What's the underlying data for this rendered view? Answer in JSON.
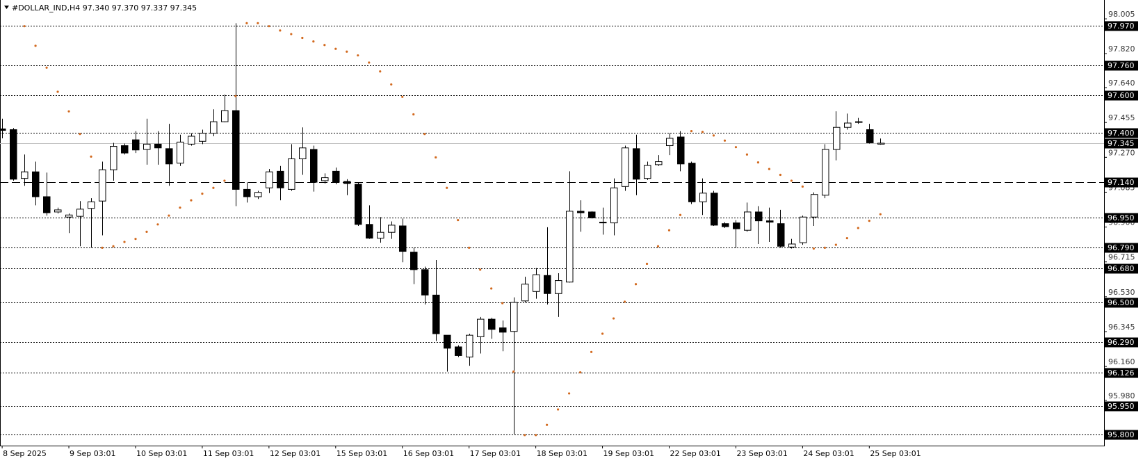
{
  "chart_data": {
    "type": "candlestick",
    "title": "#DOLLAR_IND,H4  97.340 97.370 97.337 97.345",
    "categories": [
      "8 Sep 2025",
      null,
      null,
      null,
      null,
      null,
      "9 Sep 03:01",
      null,
      null,
      null,
      null,
      null,
      "10 Sep 03:01",
      null,
      null,
      null,
      null,
      null,
      "11 Sep 03:01",
      null,
      null,
      null,
      null,
      null,
      "12 Sep 03:01",
      null,
      null,
      null,
      null,
      null,
      "15 Sep 03:01",
      null,
      null,
      null,
      null,
      null,
      "16 Sep 03:01",
      null,
      null,
      null,
      null,
      null,
      "17 Sep 03:01",
      null,
      null,
      null,
      null,
      null,
      "18 Sep 03:01",
      null,
      null,
      null,
      null,
      null,
      "19 Sep 03:01",
      null,
      null,
      null,
      null,
      null,
      "22 Sep 03:01",
      null,
      null,
      null,
      null,
      null,
      "23 Sep 03:01",
      null,
      null,
      null,
      null,
      null,
      "24 Sep 03:01",
      null,
      null,
      null,
      null,
      null,
      "25 Sep 03:01",
      null
    ],
    "open": [
      97.421,
      97.417,
      97.158,
      97.193,
      97.061,
      96.98,
      96.953,
      96.957,
      96.999,
      97.038,
      97.204,
      97.332,
      97.363,
      97.312,
      97.34,
      97.316,
      97.239,
      97.34,
      97.355,
      97.398,
      97.459,
      97.518,
      97.1,
      97.061,
      97.108,
      97.196,
      97.1,
      97.262,
      97.312,
      97.146,
      97.196,
      97.142,
      97.127,
      96.914,
      96.841,
      96.872,
      96.906,
      96.767,
      96.674,
      96.539,
      96.326,
      96.264,
      96.21,
      96.318,
      96.411,
      96.365,
      96.346,
      96.508,
      96.558,
      96.643,
      96.547,
      96.608,
      96.984,
      96.98,
      96.926,
      96.922,
      97.115,
      97.316,
      97.158,
      97.231,
      97.332,
      97.378,
      97.239,
      97.034,
      97.08,
      96.918,
      96.922,
      96.883,
      96.98,
      96.933,
      96.918,
      96.794,
      96.817,
      96.953,
      97.069,
      97.312,
      97.429,
      97.459,
      97.417,
      97.34
    ],
    "high": [
      97.475,
      97.425,
      97.285,
      97.247,
      97.189,
      97.003,
      96.972,
      97.038,
      97.053,
      97.247,
      97.347,
      97.343,
      97.409,
      97.475,
      97.409,
      97.448,
      97.39,
      97.398,
      97.417,
      97.525,
      97.603,
      97.982,
      97.138,
      97.092,
      97.208,
      97.224,
      97.34,
      97.429,
      97.332,
      97.185,
      97.216,
      97.154,
      97.138,
      97.015,
      96.953,
      96.93,
      96.945,
      96.79,
      96.69,
      96.725,
      96.326,
      96.272,
      96.334,
      96.423,
      96.419,
      96.404,
      96.527,
      96.636,
      96.682,
      96.899,
      96.655,
      97.196,
      97.042,
      96.984,
      97.003,
      97.158,
      97.332,
      97.39,
      97.247,
      97.282,
      97.398,
      97.409,
      97.247,
      97.158,
      97.092,
      96.926,
      96.937,
      97.03,
      97.011,
      97.003,
      96.991,
      96.837,
      96.961,
      97.084,
      97.34,
      97.514,
      97.502,
      97.479,
      97.448,
      97.37
    ],
    "low": [
      97.371,
      97.146,
      97.119,
      97.015,
      96.961,
      96.972,
      96.868,
      96.798,
      96.79,
      96.856,
      97.146,
      97.285,
      97.293,
      97.231,
      97.231,
      97.119,
      97.224,
      97.332,
      97.34,
      97.382,
      97.456,
      97.011,
      97.03,
      97.049,
      97.08,
      97.042,
      97.092,
      97.177,
      97.088,
      97.131,
      97.127,
      97.069,
      96.906,
      96.837,
      96.817,
      96.837,
      96.713,
      96.597,
      96.489,
      96.295,
      96.133,
      96.21,
      96.164,
      96.229,
      96.307,
      96.241,
      95.8,
      96.5,
      96.52,
      96.489,
      96.423,
      96.605,
      96.875,
      96.945,
      96.86,
      96.856,
      97.092,
      97.069,
      97.15,
      97.224,
      97.282,
      97.196,
      97.022,
      96.964,
      96.906,
      96.895,
      96.79,
      96.875,
      96.81,
      96.821,
      96.79,
      96.786,
      96.806,
      96.906,
      97.053,
      97.254,
      97.417,
      97.448,
      97.343,
      97.337
    ],
    "close": [
      97.413,
      97.154,
      97.193,
      97.061,
      96.976,
      96.991,
      96.964,
      96.995,
      97.034,
      97.204,
      97.328,
      97.293,
      97.309,
      97.34,
      97.32,
      97.235,
      97.351,
      97.382,
      97.398,
      97.459,
      97.518,
      97.1,
      97.061,
      97.084,
      97.193,
      97.108,
      97.262,
      97.32,
      97.138,
      97.162,
      97.138,
      97.131,
      96.914,
      96.841,
      96.872,
      96.91,
      96.771,
      96.674,
      96.539,
      96.334,
      96.257,
      96.218,
      96.326,
      96.411,
      96.357,
      96.342,
      96.5,
      96.597,
      96.647,
      96.547,
      96.616,
      96.984,
      96.976,
      96.949,
      96.922,
      97.108,
      97.32,
      97.154,
      97.227,
      97.247,
      97.371,
      97.235,
      97.034,
      97.08,
      96.91,
      96.902,
      96.891,
      96.98,
      96.933,
      96.926,
      96.798,
      96.81,
      96.953,
      97.073,
      97.312,
      97.429,
      97.452,
      97.456,
      97.347,
      97.345
    ],
    "up_color": "#ffffff",
    "down_color": "#000000",
    "sar": {
      "color": "#d2691e",
      "values": [
        null,
        null,
        97.966,
        97.862,
        97.746,
        97.618,
        97.514,
        97.394,
        97.274,
        96.79,
        96.798,
        96.821,
        96.837,
        96.875,
        96.914,
        96.961,
        97.003,
        97.042,
        97.077,
        97.108,
        97.146,
        97.595,
        97.982,
        97.982,
        97.966,
        97.943,
        97.924,
        97.904,
        97.885,
        97.866,
        97.846,
        97.831,
        97.811,
        97.773,
        97.726,
        97.657,
        97.591,
        97.498,
        97.394,
        97.27,
        97.108,
        96.937,
        96.79,
        96.674,
        96.574,
        96.496,
        96.133,
        95.796,
        95.796,
        95.85,
        95.932,
        96.017,
        96.129,
        96.237,
        96.334,
        96.415,
        96.504,
        96.597,
        96.705,
        96.798,
        96.883,
        96.964,
        97.409,
        97.405,
        97.386,
        97.359,
        97.324,
        97.285,
        97.243,
        97.208,
        97.177,
        97.146,
        97.115,
        96.786,
        96.79,
        96.806,
        96.841,
        96.895,
        96.933,
        96.968
      ]
    },
    "ylim": [
      95.74,
      98.105
    ],
    "yticks": [
      98.005,
      {
        "value": 97.82,
        "label": "97.820"
      },
      {
        "value": 97.64,
        "label": "97.640"
      },
      97.455,
      {
        "value": 97.27,
        "label": "97.270"
      },
      97.085,
      {
        "value": 96.9,
        "label": "96.900"
      },
      96.715,
      {
        "value": 96.53,
        "label": "96.530"
      },
      96.345,
      {
        "value": 96.16,
        "label": "96.160"
      },
      {
        "value": 95.98,
        "label": "95.980"
      }
    ],
    "dotted_levels": [
      {
        "value": 97.97,
        "label": "97.970"
      },
      {
        "value": 97.76,
        "label": "97.760"
      },
      {
        "value": 97.6,
        "label": "97.600"
      },
      {
        "value": 97.4,
        "label": "97.400"
      },
      {
        "value": 96.95,
        "label": "96.950"
      },
      {
        "value": 96.79,
        "label": "96.790"
      },
      {
        "value": 96.68,
        "label": "96.680"
      },
      {
        "value": 96.5,
        "label": "96.500"
      },
      {
        "value": 96.29,
        "label": "96.290"
      },
      96.126,
      {
        "value": 95.95,
        "label": "95.950"
      },
      {
        "value": 95.8,
        "label": "95.800"
      }
    ],
    "dashed_levels": [
      {
        "value": 97.14,
        "label": "97.140"
      }
    ],
    "price_line": 97.345
  }
}
